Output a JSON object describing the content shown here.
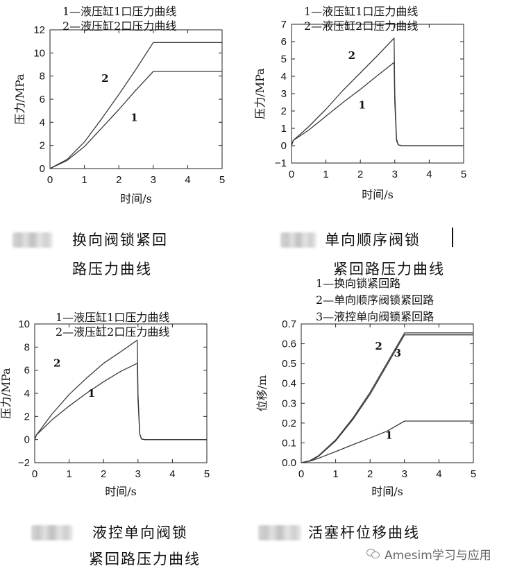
{
  "chart_data": [
    {
      "type": "line",
      "xlabel": "时间/s",
      "ylabel": "压力/MPa",
      "xlim": [
        0,
        5
      ],
      "ylim": [
        0,
        12
      ],
      "xticks": [
        "0",
        "1",
        "2",
        "3",
        "4",
        "5"
      ],
      "yticks": [
        "0",
        "2",
        "4",
        "6",
        "8",
        "10",
        "12"
      ],
      "legend": [
        "1—液压缸1口压力曲线",
        "2—液压缸2口压力曲线"
      ],
      "series": [
        {
          "name": "1",
          "x": [
            0,
            0.5,
            1,
            1.5,
            2,
            2.5,
            3,
            3.5,
            4,
            4.5,
            5
          ],
          "y": [
            0,
            0.7,
            1.9,
            3.5,
            5.1,
            6.8,
            8.4,
            8.4,
            8.4,
            8.4,
            8.4
          ]
        },
        {
          "name": "2",
          "x": [
            0,
            0.5,
            1,
            1.5,
            2,
            2.5,
            3,
            3.5,
            4,
            4.5,
            5
          ],
          "y": [
            0,
            0.8,
            2.3,
            4.3,
            6.4,
            8.6,
            10.9,
            10.9,
            10.9,
            10.9,
            10.9
          ]
        }
      ],
      "annotations": [
        {
          "text": "2",
          "x": 1.6,
          "y": 7.5
        },
        {
          "text": "1",
          "x": 2.45,
          "y": 4.1
        }
      ],
      "caption": "换向阀锁紧回路压力曲线"
    },
    {
      "type": "line",
      "xlabel": "时间/s",
      "ylabel": "压力/MPa",
      "xlim": [
        0,
        5
      ],
      "ylim": [
        -1,
        7
      ],
      "xticks": [
        "0",
        "1",
        "2",
        "3",
        "4",
        "5"
      ],
      "yticks": [
        "−1",
        "0",
        "1",
        "2",
        "3",
        "4",
        "5",
        "6",
        "7"
      ],
      "legend": [
        "1—液压缸1口压力曲线",
        "2—液压缸2口压力曲线"
      ],
      "series": [
        {
          "name": "1",
          "x": [
            0,
            0.05,
            0.5,
            1,
            1.5,
            2,
            2.5,
            2.98,
            3.0,
            3.05,
            3.1,
            3.2,
            4,
            5
          ],
          "y": [
            0,
            0.3,
            0.9,
            1.7,
            2.5,
            3.25,
            4.05,
            4.8,
            2.5,
            0.3,
            0.05,
            0.0,
            0.0,
            0.0
          ]
        },
        {
          "name": "2",
          "x": [
            0,
            0.05,
            0.5,
            1,
            1.5,
            2,
            2.5,
            2.98,
            3.0,
            3.05,
            3.1,
            3.2,
            4,
            5
          ],
          "y": [
            0,
            0.3,
            1.1,
            2.1,
            3.2,
            4.2,
            5.2,
            6.2,
            3.0,
            0.4,
            0.05,
            0.0,
            0.0,
            0.0
          ]
        }
      ],
      "annotations": [
        {
          "text": "2",
          "x": 1.75,
          "y": 5.0
        },
        {
          "text": "1",
          "x": 2.05,
          "y": 2.15
        }
      ],
      "caption": "单向顺序阀锁紧回路压力曲线"
    },
    {
      "type": "line",
      "xlabel": "时间/s",
      "ylabel": "压力/MPa",
      "xlim": [
        0,
        5
      ],
      "ylim": [
        -2,
        10
      ],
      "xticks": [
        "0",
        "1",
        "2",
        "3",
        "4",
        "5"
      ],
      "yticks": [
        "−2",
        "0",
        "2",
        "4",
        "6",
        "8",
        "10"
      ],
      "legend": [
        "1—液压缸1口压力曲线",
        "2—液压缸2口压力曲线"
      ],
      "series": [
        {
          "name": "1",
          "x": [
            0,
            0.05,
            0.5,
            1,
            1.5,
            2,
            2.5,
            2.98,
            3.0,
            3.05,
            3.1,
            3.2,
            4,
            5
          ],
          "y": [
            0,
            0.4,
            1.7,
            2.9,
            4.0,
            5.0,
            5.9,
            6.6,
            3.5,
            0.5,
            0.05,
            0.0,
            0.0,
            0.0
          ]
        },
        {
          "name": "2",
          "x": [
            0,
            0.05,
            0.5,
            1,
            1.5,
            2,
            2.5,
            2.98,
            3.0,
            3.05,
            3.1,
            3.2,
            4,
            5
          ],
          "y": [
            0,
            0.4,
            2.2,
            3.9,
            5.3,
            6.6,
            7.6,
            8.6,
            4.0,
            0.5,
            0.05,
            0.0,
            0.0,
            0.0
          ]
        }
      ],
      "annotations": [
        {
          "text": "2",
          "x": 0.65,
          "y": 6.3
        },
        {
          "text": "1",
          "x": 1.65,
          "y": 3.7
        }
      ],
      "caption": "液控单向阀锁紧回路压力曲线"
    },
    {
      "type": "line",
      "xlabel": "时间/s",
      "ylabel": "位移/m",
      "xlim": [
        0,
        5
      ],
      "ylim": [
        0,
        0.7
      ],
      "xticks": [
        "0",
        "1",
        "2",
        "3",
        "4",
        "5"
      ],
      "yticks": [
        "0.0",
        "0.1",
        "0.2",
        "0.3",
        "0.4",
        "0.5",
        "0.6",
        "0.7"
      ],
      "legend": [
        "1—换向锁紧回路",
        "2—单向顺序阀锁紧回路",
        "3—液控单向阀锁紧回路"
      ],
      "series": [
        {
          "name": "1",
          "x": [
            0,
            0.25,
            0.5,
            1,
            1.5,
            2,
            2.5,
            3,
            3.5,
            4,
            4.5,
            5
          ],
          "y": [
            0,
            0.008,
            0.022,
            0.056,
            0.091,
            0.125,
            0.16,
            0.21,
            0.21,
            0.21,
            0.21,
            0.21
          ]
        },
        {
          "name": "2",
          "x": [
            0,
            0.25,
            0.5,
            1,
            1.5,
            2,
            2.5,
            3,
            3.5,
            4,
            4.5,
            5
          ],
          "y": [
            0,
            0.01,
            0.035,
            0.115,
            0.225,
            0.355,
            0.505,
            0.655,
            0.655,
            0.655,
            0.655,
            0.655
          ]
        },
        {
          "name": "3",
          "x": [
            0,
            0.25,
            0.5,
            1,
            1.5,
            2,
            2.5,
            3,
            3.5,
            4,
            4.5,
            5
          ],
          "y": [
            0,
            0.009,
            0.032,
            0.11,
            0.218,
            0.345,
            0.495,
            0.645,
            0.645,
            0.645,
            0.645,
            0.645
          ]
        }
      ],
      "annotations": [
        {
          "text": "2",
          "x": 2.25,
          "y": 0.57
        },
        {
          "text": "3",
          "x": 2.8,
          "y": 0.535
        },
        {
          "text": "1",
          "x": 2.55,
          "y": 0.12
        }
      ],
      "caption": "活塞杆位移曲线"
    }
  ],
  "watermark": "Amesim学习与应用"
}
